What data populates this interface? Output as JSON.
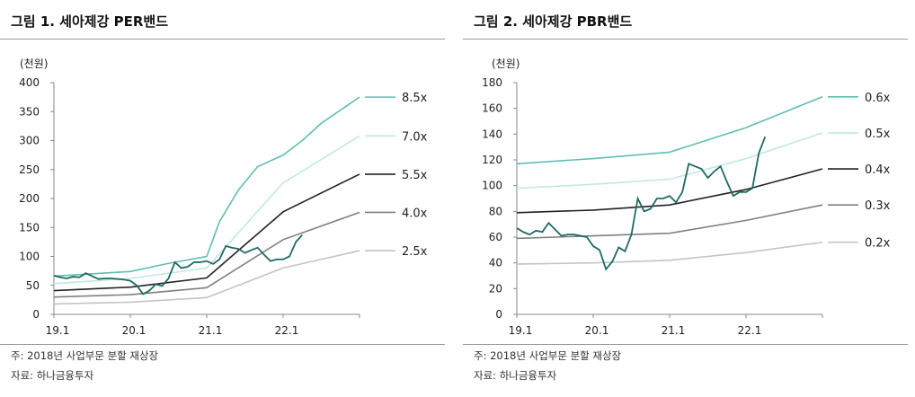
{
  "chart_data": [
    {
      "type": "line",
      "title": "그림 1. 세아제강 PER밴드",
      "ylabel": "(천원)",
      "ylim": [
        0,
        400
      ],
      "yticks": [
        0,
        50,
        100,
        150,
        200,
        250,
        300,
        350,
        400
      ],
      "xticks": [
        "19.1",
        "20.1",
        "21.1",
        "22.1"
      ],
      "xlim": [
        "2019-01",
        "2023-01"
      ],
      "notes": [
        "주: 2018년 사업부문 분할 재상장",
        "자료: 하나금융투자"
      ],
      "price": {
        "color": "#1f6b60",
        "x": [
          "2019-01",
          "2019-02",
          "2019-03",
          "2019-04",
          "2019-05",
          "2019-06",
          "2019-07",
          "2019-08",
          "2019-09",
          "2019-10",
          "2019-11",
          "2019-12",
          "2020-01",
          "2020-02",
          "2020-03",
          "2020-04",
          "2020-05",
          "2020-06",
          "2020-07",
          "2020-08",
          "2020-09",
          "2020-10",
          "2020-11",
          "2020-12",
          "2021-01",
          "2021-02",
          "2021-03",
          "2021-04",
          "2021-05",
          "2021-06",
          "2021-07",
          "2021-08",
          "2021-09",
          "2021-10",
          "2021-11",
          "2021-12",
          "2022-01",
          "2022-02",
          "2022-03",
          "2022-04"
        ],
        "values": [
          67,
          64,
          62,
          65,
          64,
          71,
          66,
          61,
          62,
          62,
          61,
          60,
          58,
          50,
          35,
          41,
          52,
          49,
          62,
          90,
          80,
          82,
          90,
          90,
          92,
          87,
          95,
          118,
          115,
          113,
          106,
          111,
          115,
          103,
          92,
          95,
          95,
          100,
          125,
          137
        ]
      },
      "series": [
        {
          "name": "8.5x",
          "color": "#5fbfb0",
          "x": [
            "2019-01",
            "2020-01",
            "2020-07",
            "2021-01",
            "2021-03",
            "2021-06",
            "2021-09",
            "2022-01",
            "2022-04",
            "2022-07",
            "2022-11",
            "2023-01"
          ],
          "values": [
            66,
            74,
            88,
            100,
            160,
            215,
            255,
            275,
            300,
            330,
            360,
            375
          ]
        },
        {
          "name": "7.0x",
          "color": "#c2e8e1",
          "x": [
            "2019-01",
            "2020-01",
            "2021-01",
            "2022-01",
            "2023-01"
          ],
          "values": [
            53,
            62,
            80,
            227,
            308
          ]
        },
        {
          "name": "5.5x",
          "color": "#222222",
          "x": [
            "2019-01",
            "2020-01",
            "2021-01",
            "2022-01",
            "2023-01"
          ],
          "values": [
            41,
            47,
            63,
            177,
            242
          ]
        },
        {
          "name": "4.0x",
          "color": "#808080",
          "x": [
            "2019-01",
            "2020-01",
            "2021-01",
            "2022-01",
            "2023-01"
          ],
          "values": [
            30,
            34,
            46,
            129,
            176
          ]
        },
        {
          "name": "2.5x",
          "color": "#c4c4c4",
          "x": [
            "2019-01",
            "2020-01",
            "2021-01",
            "2022-01",
            "2023-01"
          ],
          "values": [
            18,
            21,
            29,
            80,
            110
          ]
        }
      ]
    },
    {
      "type": "line",
      "title": "그림 2. 세아제강 PBR밴드",
      "ylabel": "(천원)",
      "ylim": [
        0,
        180
      ],
      "yticks": [
        0,
        20,
        40,
        60,
        80,
        100,
        120,
        140,
        160,
        180
      ],
      "xticks": [
        "19.1",
        "20.1",
        "21.1",
        "22.1"
      ],
      "xlim": [
        "2019-01",
        "2023-01"
      ],
      "notes": [
        "주: 2018년 사업부문 분할 재상장",
        "자료: 하나금융투자"
      ],
      "price": {
        "color": "#1f6b60",
        "x": [
          "2019-01",
          "2019-02",
          "2019-03",
          "2019-04",
          "2019-05",
          "2019-06",
          "2019-07",
          "2019-08",
          "2019-09",
          "2019-10",
          "2019-11",
          "2019-12",
          "2020-01",
          "2020-02",
          "2020-03",
          "2020-04",
          "2020-05",
          "2020-06",
          "2020-07",
          "2020-08",
          "2020-09",
          "2020-10",
          "2020-11",
          "2020-12",
          "2021-01",
          "2021-02",
          "2021-03",
          "2021-04",
          "2021-05",
          "2021-06",
          "2021-07",
          "2021-08",
          "2021-09",
          "2021-10",
          "2021-11",
          "2021-12",
          "2022-01",
          "2022-02",
          "2022-03",
          "2022-04"
        ],
        "values": [
          67,
          64,
          62,
          65,
          64,
          71,
          66,
          61,
          62,
          62,
          61,
          60,
          53,
          50,
          35,
          41,
          52,
          49,
          62,
          90,
          80,
          82,
          90,
          90,
          92,
          87,
          95,
          117,
          115,
          113,
          106,
          111,
          115,
          103,
          92,
          95,
          95,
          98,
          125,
          138
        ]
      },
      "series": [
        {
          "name": "0.6x",
          "color": "#5fbfb0",
          "x": [
            "2019-01",
            "2020-01",
            "2021-01",
            "2022-01",
            "2023-01"
          ],
          "values": [
            117,
            121,
            126,
            145,
            169
          ]
        },
        {
          "name": "0.5x",
          "color": "#c2e8e1",
          "x": [
            "2019-01",
            "2020-01",
            "2021-01",
            "2022-01",
            "2023-01"
          ],
          "values": [
            98,
            101,
            105,
            121,
            141
          ]
        },
        {
          "name": "0.4x",
          "color": "#222222",
          "x": [
            "2019-01",
            "2020-01",
            "2021-01",
            "2022-01",
            "2023-01"
          ],
          "values": [
            79,
            81,
            85,
            97,
            113
          ]
        },
        {
          "name": "0.3x",
          "color": "#808080",
          "x": [
            "2019-01",
            "2020-01",
            "2021-01",
            "2022-01",
            "2023-01"
          ],
          "values": [
            59,
            61,
            63,
            73,
            85
          ]
        },
        {
          "name": "0.2x",
          "color": "#c4c4c4",
          "x": [
            "2019-01",
            "2020-01",
            "2021-01",
            "2022-01",
            "2023-01"
          ],
          "values": [
            39,
            40,
            42,
            48,
            56
          ]
        }
      ]
    }
  ]
}
